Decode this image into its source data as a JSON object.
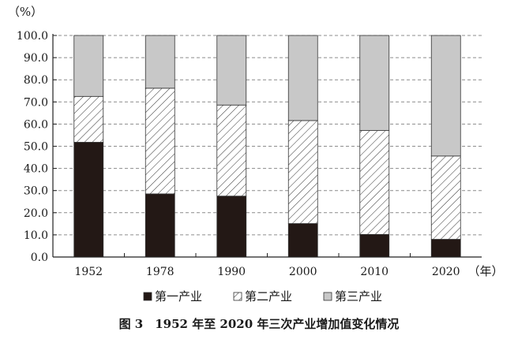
{
  "chart_data": {
    "type": "bar",
    "stacked": true,
    "y_unit": "（%）",
    "x_unit": "（年）",
    "caption": "图 3　1952 年至 2020 年三次产业增加值变化情况",
    "categories": [
      "1952",
      "1978",
      "1990",
      "2000",
      "2010",
      "2020"
    ],
    "ylim": [
      0,
      100
    ],
    "yticks": [
      "0.0",
      "10.0",
      "20.0",
      "30.0",
      "40.0",
      "50.0",
      "60.0",
      "70.0",
      "80.0",
      "90.0",
      "100.0"
    ],
    "grid": "horizontal dashed",
    "legend_position": "bottom",
    "series": [
      {
        "name": "第一产业",
        "fill": "solid",
        "color": "#231815",
        "values": [
          51.8,
          28.5,
          27.5,
          15.1,
          10.2,
          8.0
        ]
      },
      {
        "name": "第二产业",
        "fill": "hatched",
        "color": "#ffffff",
        "values": [
          20.7,
          47.7,
          41.1,
          46.5,
          46.9,
          37.6
        ]
      },
      {
        "name": "第三产业",
        "fill": "light-gray",
        "color": "#c8c8c8",
        "values": [
          27.5,
          23.8,
          31.4,
          38.4,
          42.9,
          54.4
        ]
      }
    ]
  }
}
